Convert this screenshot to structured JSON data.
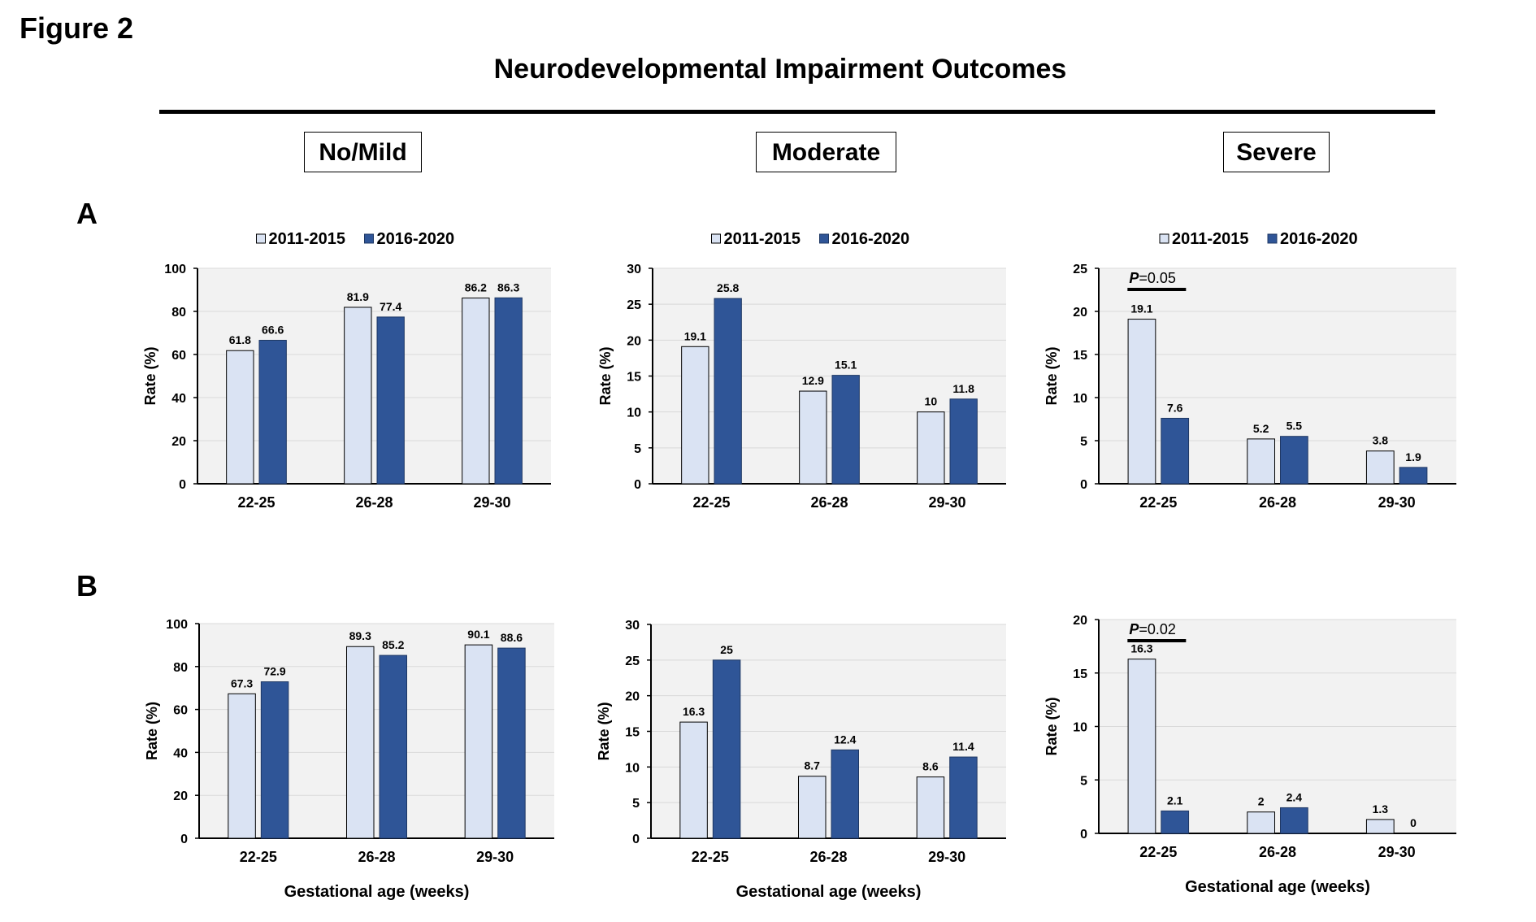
{
  "figure_label": "Figure 2",
  "title": "Neurodevelopmental Impairment Outcomes",
  "columns": [
    "No/Mild",
    "Moderate",
    "Severe"
  ],
  "rows": [
    "A",
    "B"
  ],
  "colors": {
    "series1": "#dae3f3",
    "series2": "#2f5597",
    "plot_bg": "#f2f2f2"
  },
  "chart_data": [
    {
      "type": "bar",
      "row": "A",
      "column": "No/Mild",
      "categories": [
        "22-25",
        "26-28",
        "29-30"
      ],
      "series": [
        {
          "name": "2011-2015",
          "values": [
            61.8,
            81.9,
            86.2
          ]
        },
        {
          "name": "2016-2020",
          "values": [
            66.6,
            77.4,
            86.3
          ]
        }
      ],
      "ylabel": "Rate (%)",
      "xlabel": "",
      "ylim": [
        0,
        100
      ],
      "yticks": [
        0,
        20,
        40,
        60,
        80,
        100
      ],
      "legend": "top",
      "grid": true
    },
    {
      "type": "bar",
      "row": "A",
      "column": "Moderate",
      "categories": [
        "22-25",
        "26-28",
        "29-30"
      ],
      "series": [
        {
          "name": "2011-2015",
          "values": [
            19.1,
            12.9,
            10
          ]
        },
        {
          "name": "2016-2020",
          "values": [
            25.8,
            15.1,
            11.8
          ]
        }
      ],
      "ylabel": "Rate (%)",
      "xlabel": "",
      "ylim": [
        0,
        30
      ],
      "yticks": [
        0,
        5,
        10,
        15,
        20,
        25,
        30
      ],
      "legend": "top",
      "grid": true
    },
    {
      "type": "bar",
      "row": "A",
      "column": "Severe",
      "categories": [
        "22-25",
        "26-28",
        "29-30"
      ],
      "series": [
        {
          "name": "2011-2015",
          "values": [
            19.1,
            5.2,
            3.8
          ]
        },
        {
          "name": "2016-2020",
          "values": [
            7.6,
            5.5,
            1.9
          ]
        }
      ],
      "ylabel": "Rate (%)",
      "xlabel": "",
      "ylim": [
        0,
        25
      ],
      "yticks": [
        0,
        5,
        10,
        15,
        20,
        25
      ],
      "legend": "top",
      "grid": true,
      "annotation": {
        "text_p": "P",
        "text_rest": "=0.05",
        "category": "22-25"
      }
    },
    {
      "type": "bar",
      "row": "B",
      "column": "No/Mild",
      "categories": [
        "22-25",
        "26-28",
        "29-30"
      ],
      "series": [
        {
          "name": "2011-2015",
          "values": [
            67.3,
            89.3,
            90.1
          ]
        },
        {
          "name": "2016-2020",
          "values": [
            72.9,
            85.2,
            88.6
          ]
        }
      ],
      "ylabel": "Rate (%)",
      "xlabel": "Gestational  age (weeks)",
      "ylim": [
        0,
        100
      ],
      "yticks": [
        0,
        20,
        40,
        60,
        80,
        100
      ],
      "legend": "none",
      "grid": true
    },
    {
      "type": "bar",
      "row": "B",
      "column": "Moderate",
      "categories": [
        "22-25",
        "26-28",
        "29-30"
      ],
      "series": [
        {
          "name": "2011-2015",
          "values": [
            16.3,
            8.7,
            8.6
          ]
        },
        {
          "name": "2016-2020",
          "values": [
            25,
            12.4,
            11.4
          ]
        }
      ],
      "ylabel": "Rate (%)",
      "xlabel": "Gestational  age (weeks)",
      "ylim": [
        0,
        30
      ],
      "yticks": [
        0,
        5,
        10,
        15,
        20,
        25,
        30
      ],
      "legend": "none",
      "grid": true
    },
    {
      "type": "bar",
      "row": "B",
      "column": "Severe",
      "categories": [
        "22-25",
        "26-28",
        "29-30"
      ],
      "series": [
        {
          "name": "2011-2015",
          "values": [
            16.3,
            2,
            1.3
          ]
        },
        {
          "name": "2016-2020",
          "values": [
            2.1,
            2.4,
            0
          ]
        }
      ],
      "ylabel": "Rate (%)",
      "xlabel": "Gestational  age (weeks)",
      "ylim": [
        0,
        20
      ],
      "yticks": [
        0,
        5,
        10,
        15,
        20
      ],
      "legend": "none",
      "grid": true,
      "annotation": {
        "text_p": "P",
        "text_rest": "=0.02",
        "category": "22-25"
      }
    }
  ]
}
